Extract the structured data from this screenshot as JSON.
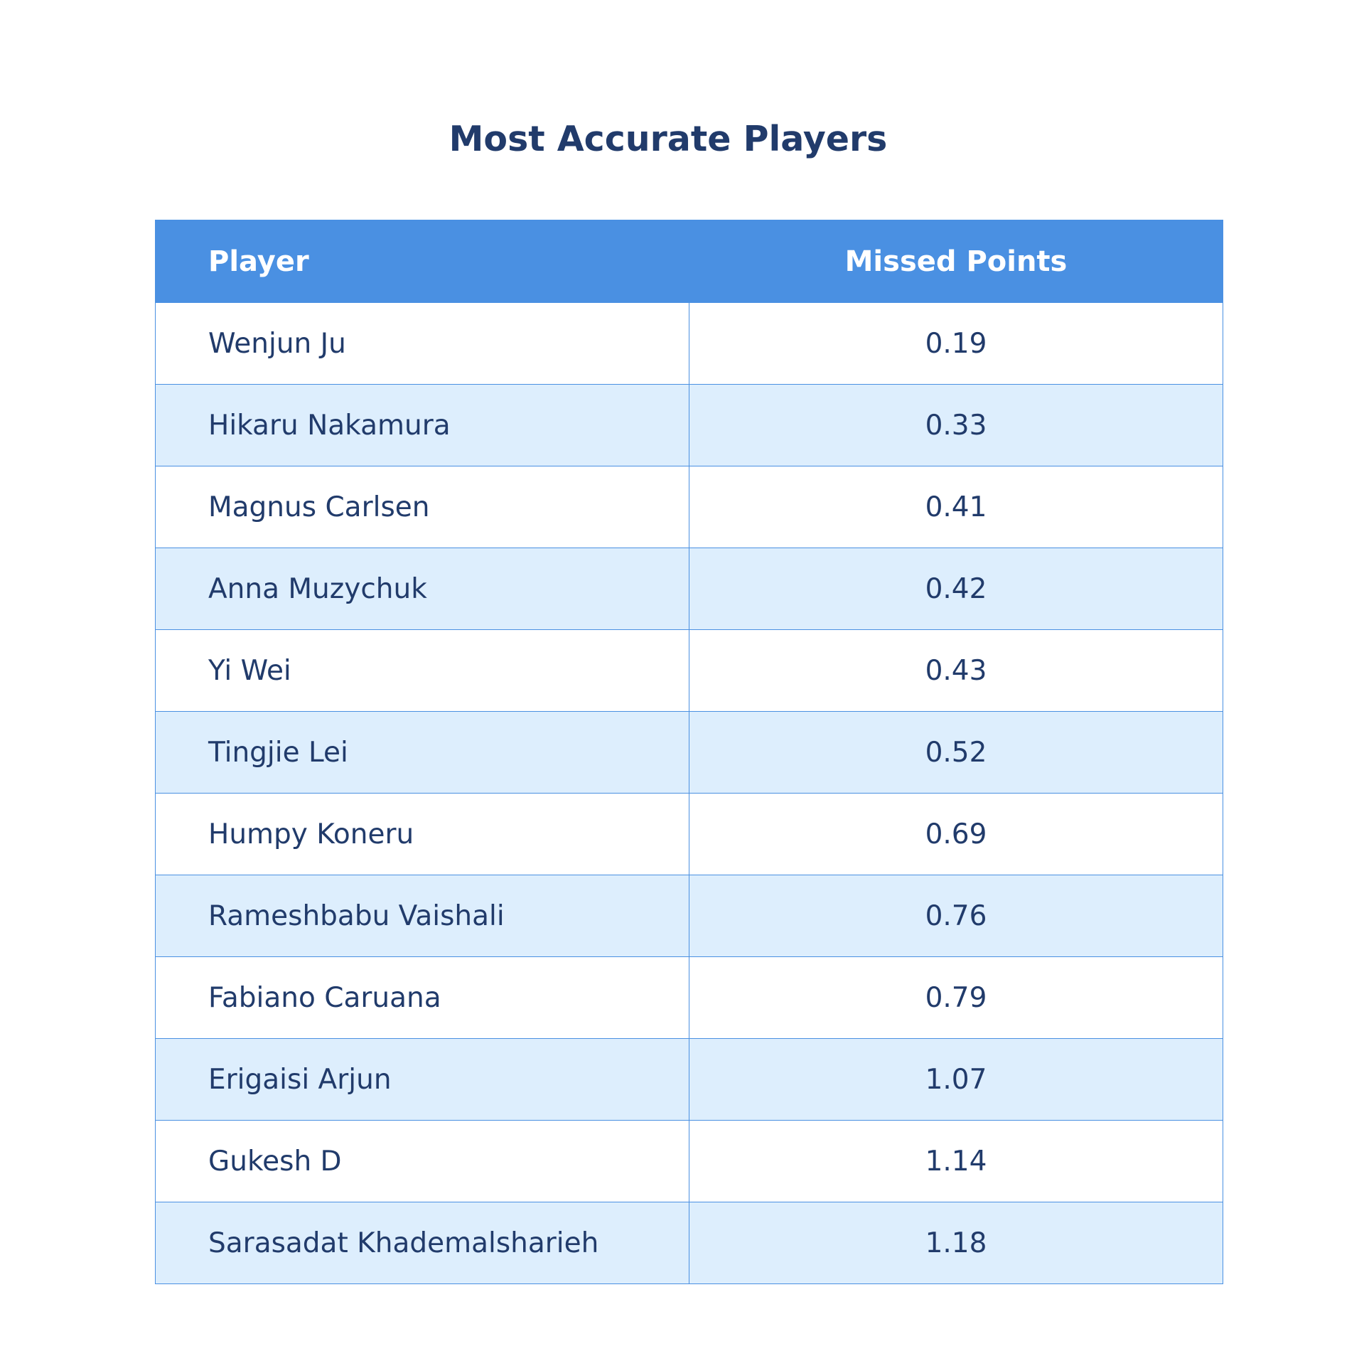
{
  "chart_data": {
    "type": "table",
    "title": "Most Accurate Players",
    "columns": [
      "Player",
      "Missed Points"
    ],
    "rows": [
      [
        "Wenjun Ju",
        "0.19"
      ],
      [
        "Hikaru Nakamura",
        "0.33"
      ],
      [
        "Magnus Carlsen",
        "0.41"
      ],
      [
        "Anna Muzychuk",
        "0.42"
      ],
      [
        "Yi Wei",
        "0.43"
      ],
      [
        "Tingjie Lei",
        "0.52"
      ],
      [
        "Humpy Koneru",
        "0.69"
      ],
      [
        "Rameshbabu Vaishali",
        "0.76"
      ],
      [
        "Fabiano Caruana",
        "0.79"
      ],
      [
        "Erigaisi Arjun",
        "1.07"
      ],
      [
        "Gukesh D",
        "1.14"
      ],
      [
        "Sarasadat Khademalsharieh",
        "1.18"
      ]
    ],
    "colors": {
      "header_bg": "#4a90e2",
      "header_text": "#ffffff",
      "row_alt_bg": "#ddeefd",
      "text": "#213b6b",
      "border": "#4a90e2"
    }
  }
}
